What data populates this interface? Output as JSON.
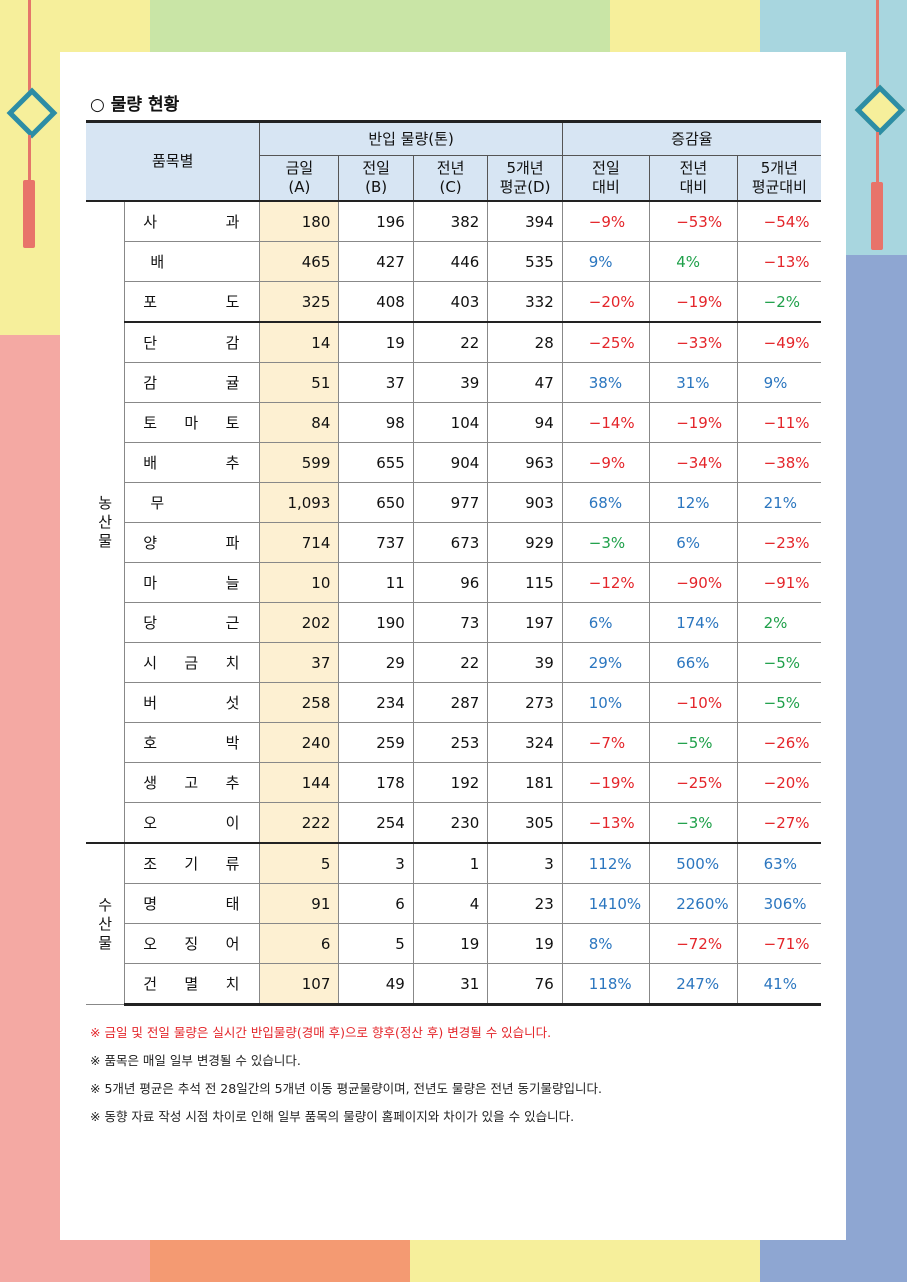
{
  "section_title": "○ 물량 현황",
  "header": {
    "item_col": "품목별",
    "volume_group": "반입 물량(톤)",
    "rate_group": "증감율",
    "volume_cols": [
      {
        "line1": "금일",
        "line2": "(A)"
      },
      {
        "line1": "전일",
        "line2": "(B)"
      },
      {
        "line1": "전년",
        "line2": "(C)"
      },
      {
        "line1": "5개년",
        "line2": "평균(D)"
      }
    ],
    "rate_cols": [
      {
        "line1": "전일",
        "line2": "대비"
      },
      {
        "line1": "전년",
        "line2": "대비"
      },
      {
        "line1": "5개년",
        "line2": "평균대비"
      }
    ]
  },
  "groups": [
    {
      "category": "농산물",
      "rows": [
        {
          "name": "사과",
          "today": "180",
          "prev_day": "196",
          "prev_year": "382",
          "avg5": "394",
          "r_day": "-9%",
          "r_year": "-53%",
          "r_avg": "-54%"
        },
        {
          "name": "배",
          "today": "465",
          "prev_day": "427",
          "prev_year": "446",
          "avg5": "535",
          "r_day": "9%",
          "r_year": "4%",
          "r_avg": "-13%"
        },
        {
          "name": "포도",
          "today": "325",
          "prev_day": "408",
          "prev_year": "403",
          "avg5": "332",
          "r_day": "-20%",
          "r_year": "-19%",
          "r_avg": "-2%"
        },
        {
          "name": "단감",
          "today": "14",
          "prev_day": "19",
          "prev_year": "22",
          "avg5": "28",
          "r_day": "-25%",
          "r_year": "-33%",
          "r_avg": "-49%"
        },
        {
          "name": "감귤",
          "today": "51",
          "prev_day": "37",
          "prev_year": "39",
          "avg5": "47",
          "r_day": "38%",
          "r_year": "31%",
          "r_avg": "9%"
        },
        {
          "name": "토마토",
          "today": "84",
          "prev_day": "98",
          "prev_year": "104",
          "avg5": "94",
          "r_day": "-14%",
          "r_year": "-19%",
          "r_avg": "-11%"
        },
        {
          "name": "배추",
          "today": "599",
          "prev_day": "655",
          "prev_year": "904",
          "avg5": "963",
          "r_day": "-9%",
          "r_year": "-34%",
          "r_avg": "-38%"
        },
        {
          "name": "무",
          "today": "1,093",
          "prev_day": "650",
          "prev_year": "977",
          "avg5": "903",
          "r_day": "68%",
          "r_year": "12%",
          "r_avg": "21%"
        },
        {
          "name": "양파",
          "today": "714",
          "prev_day": "737",
          "prev_year": "673",
          "avg5": "929",
          "r_day": "-3%",
          "r_year": "6%",
          "r_avg": "-23%"
        },
        {
          "name": "마늘",
          "today": "10",
          "prev_day": "11",
          "prev_year": "96",
          "avg5": "115",
          "r_day": "-12%",
          "r_year": "-90%",
          "r_avg": "-91%"
        },
        {
          "name": "당근",
          "today": "202",
          "prev_day": "190",
          "prev_year": "73",
          "avg5": "197",
          "r_day": "6%",
          "r_year": "174%",
          "r_avg": "2%"
        },
        {
          "name": "시금치",
          "today": "37",
          "prev_day": "29",
          "prev_year": "22",
          "avg5": "39",
          "r_day": "29%",
          "r_year": "66%",
          "r_avg": "-5%"
        },
        {
          "name": "버섯",
          "today": "258",
          "prev_day": "234",
          "prev_year": "287",
          "avg5": "273",
          "r_day": "10%",
          "r_year": "-10%",
          "r_avg": "-5%"
        },
        {
          "name": "호박",
          "today": "240",
          "prev_day": "259",
          "prev_year": "253",
          "avg5": "324",
          "r_day": "-7%",
          "r_year": "-5%",
          "r_avg": "-26%"
        },
        {
          "name": "생고추",
          "today": "144",
          "prev_day": "178",
          "prev_year": "192",
          "avg5": "181",
          "r_day": "-19%",
          "r_year": "-25%",
          "r_avg": "-20%"
        },
        {
          "name": "오이",
          "today": "222",
          "prev_day": "254",
          "prev_year": "230",
          "avg5": "305",
          "r_day": "-13%",
          "r_year": "-3%",
          "r_avg": "-27%"
        }
      ]
    },
    {
      "category": "수산물",
      "rows": [
        {
          "name": "조기류",
          "today": "5",
          "prev_day": "3",
          "prev_year": "1",
          "avg5": "3",
          "r_day": "112%",
          "r_year": "500%",
          "r_avg": "63%"
        },
        {
          "name": "명태",
          "today": "91",
          "prev_day": "6",
          "prev_year": "4",
          "avg5": "23",
          "r_day": "1410%",
          "r_year": "2260%",
          "r_avg": "306%"
        },
        {
          "name": "오징어",
          "today": "6",
          "prev_day": "5",
          "prev_year": "19",
          "avg5": "19",
          "r_day": "8%",
          "r_year": "-72%",
          "r_avg": "-71%"
        },
        {
          "name": "건멸치",
          "today": "107",
          "prev_day": "49",
          "prev_year": "31",
          "avg5": "76",
          "r_day": "118%",
          "r_year": "247%",
          "r_avg": "41%"
        }
      ]
    }
  ],
  "notes": [
    "※ 금일 및 전일 물량은 실시간 반입물량(경매 후)으로 향후(정산 후) 변경될 수 있습니다.",
    "※ 품목은 매일 일부 변경될 수 있습니다.",
    "※ 5개년 평균은 추석 전 28일간의 5개년 이동 평균물량이며, 전년도 물량은 전년 동기물량입니다.",
    "※ 동향 자료 작성 시점 차이로 인해 일부 품목의 물량이 홈페이지와 차이가 있을 수 있습니다."
  ],
  "colors": {
    "negative": "#e4252a",
    "positive": "#2b76bf",
    "green": "#1fa04a",
    "highlight": "#fdf0d2",
    "header_bg": "#d7e5f3"
  }
}
